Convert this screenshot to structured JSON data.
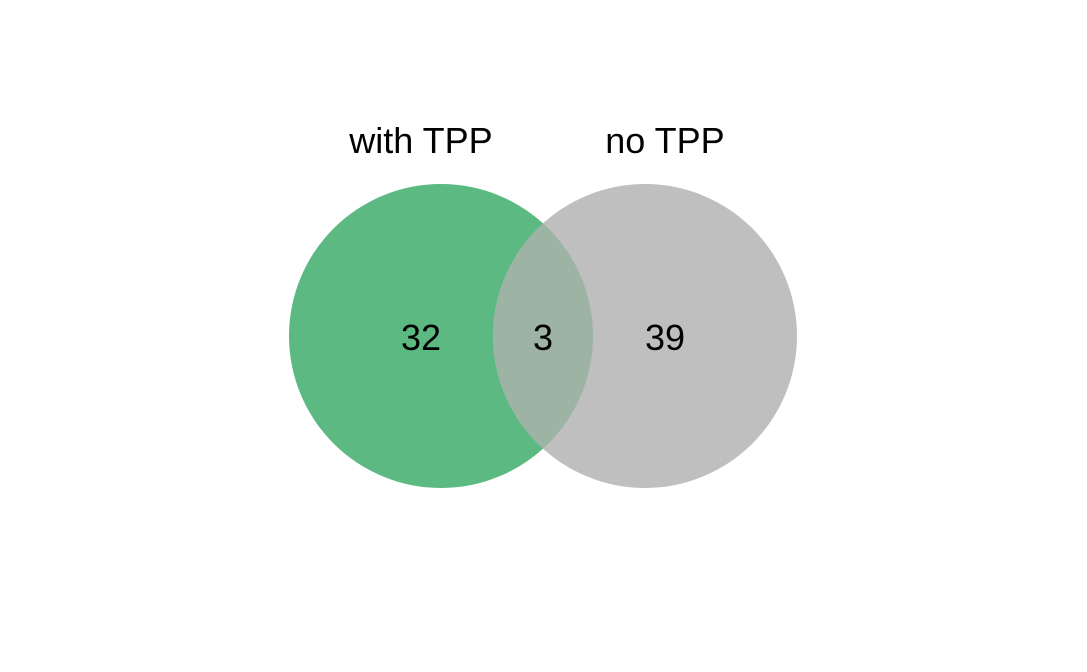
{
  "venn": {
    "sets": [
      {
        "label": "with TPP",
        "color": "#5cb981"
      },
      {
        "label": "no TPP",
        "color": "#bfbfbf"
      }
    ],
    "overlap_color": "#9db3a4",
    "counts": {
      "left_only": "32",
      "intersection": "3",
      "right_only": "39"
    }
  }
}
